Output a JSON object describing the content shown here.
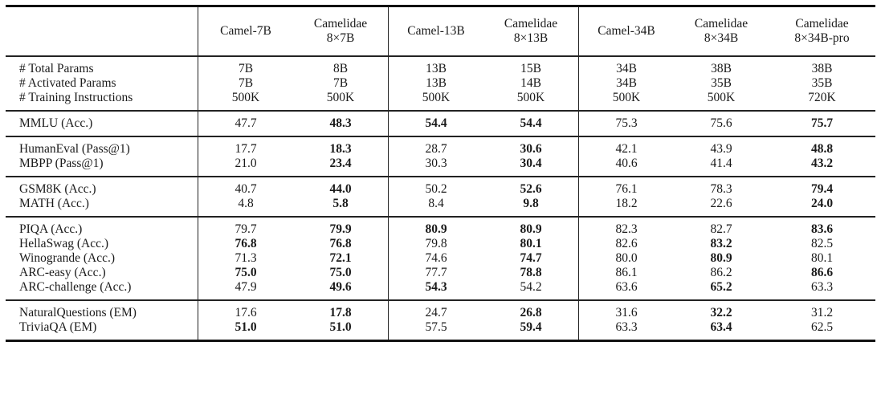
{
  "table": {
    "columns": [
      {
        "line1": "Camel-7B",
        "line2": ""
      },
      {
        "line1": "Camelidae",
        "line2": "8×7B"
      },
      {
        "line1": "Camel-13B",
        "line2": ""
      },
      {
        "line1": "Camelidae",
        "line2": "8×13B"
      },
      {
        "line1": "Camel-34B",
        "line2": ""
      },
      {
        "line1": "Camelidae",
        "line2": "8×34B"
      },
      {
        "line1": "Camelidae",
        "line2": "8×34B-pro"
      }
    ],
    "groups": [
      {
        "rows": [
          {
            "label": "# Total Params",
            "values": [
              "7B",
              "8B",
              "13B",
              "15B",
              "34B",
              "38B",
              "38B"
            ],
            "bold": [
              0,
              0,
              0,
              0,
              0,
              0,
              0
            ]
          },
          {
            "label": "# Activated Params",
            "values": [
              "7B",
              "7B",
              "13B",
              "14B",
              "34B",
              "35B",
              "35B"
            ],
            "bold": [
              0,
              0,
              0,
              0,
              0,
              0,
              0
            ]
          },
          {
            "label": "# Training Instructions",
            "values": [
              "500K",
              "500K",
              "500K",
              "500K",
              "500K",
              "500K",
              "720K"
            ],
            "bold": [
              0,
              0,
              0,
              0,
              0,
              0,
              0
            ]
          }
        ]
      },
      {
        "rows": [
          {
            "label": "MMLU (Acc.)",
            "values": [
              "47.7",
              "48.3",
              "54.4",
              "54.4",
              "75.3",
              "75.6",
              "75.7"
            ],
            "bold": [
              0,
              1,
              1,
              1,
              0,
              0,
              1
            ]
          }
        ]
      },
      {
        "rows": [
          {
            "label": "HumanEval (Pass@1)",
            "values": [
              "17.7",
              "18.3",
              "28.7",
              "30.6",
              "42.1",
              "43.9",
              "48.8"
            ],
            "bold": [
              0,
              1,
              0,
              1,
              0,
              0,
              1
            ]
          },
          {
            "label": "MBPP (Pass@1)",
            "values": [
              "21.0",
              "23.4",
              "30.3",
              "30.4",
              "40.6",
              "41.4",
              "43.2"
            ],
            "bold": [
              0,
              1,
              0,
              1,
              0,
              0,
              1
            ]
          }
        ]
      },
      {
        "rows": [
          {
            "label": "GSM8K (Acc.)",
            "values": [
              "40.7",
              "44.0",
              "50.2",
              "52.6",
              "76.1",
              "78.3",
              "79.4"
            ],
            "bold": [
              0,
              1,
              0,
              1,
              0,
              0,
              1
            ]
          },
          {
            "label": "MATH (Acc.)",
            "values": [
              "4.8",
              "5.8",
              "8.4",
              "9.8",
              "18.2",
              "22.6",
              "24.0"
            ],
            "bold": [
              0,
              1,
              0,
              1,
              0,
              0,
              1
            ]
          }
        ]
      },
      {
        "rows": [
          {
            "label": "PIQA (Acc.)",
            "values": [
              "79.7",
              "79.9",
              "80.9",
              "80.9",
              "82.3",
              "82.7",
              "83.6"
            ],
            "bold": [
              0,
              1,
              1,
              1,
              0,
              0,
              1
            ]
          },
          {
            "label": "HellaSwag (Acc.)",
            "values": [
              "76.8",
              "76.8",
              "79.8",
              "80.1",
              "82.6",
              "83.2",
              "82.5"
            ],
            "bold": [
              1,
              1,
              0,
              1,
              0,
              1,
              0
            ]
          },
          {
            "label": "Winogrande (Acc.)",
            "values": [
              "71.3",
              "72.1",
              "74.6",
              "74.7",
              "80.0",
              "80.9",
              "80.1"
            ],
            "bold": [
              0,
              1,
              0,
              1,
              0,
              1,
              0
            ]
          },
          {
            "label": "ARC-easy (Acc.)",
            "values": [
              "75.0",
              "75.0",
              "77.7",
              "78.8",
              "86.1",
              "86.2",
              "86.6"
            ],
            "bold": [
              1,
              1,
              0,
              1,
              0,
              0,
              1
            ]
          },
          {
            "label": "ARC-challenge (Acc.)",
            "values": [
              "47.9",
              "49.6",
              "54.3",
              "54.2",
              "63.6",
              "65.2",
              "63.3"
            ],
            "bold": [
              0,
              1,
              1,
              0,
              0,
              1,
              0
            ]
          }
        ]
      },
      {
        "rows": [
          {
            "label": "NaturalQuestions (EM)",
            "values": [
              "17.6",
              "17.8",
              "24.7",
              "26.8",
              "31.6",
              "32.2",
              "31.2"
            ],
            "bold": [
              0,
              1,
              0,
              1,
              0,
              1,
              0
            ]
          },
          {
            "label": "TriviaQA (EM)",
            "values": [
              "51.0",
              "51.0",
              "57.5",
              "59.4",
              "63.3",
              "63.4",
              "62.5"
            ],
            "bold": [
              1,
              1,
              0,
              1,
              0,
              1,
              0
            ]
          }
        ]
      }
    ]
  }
}
